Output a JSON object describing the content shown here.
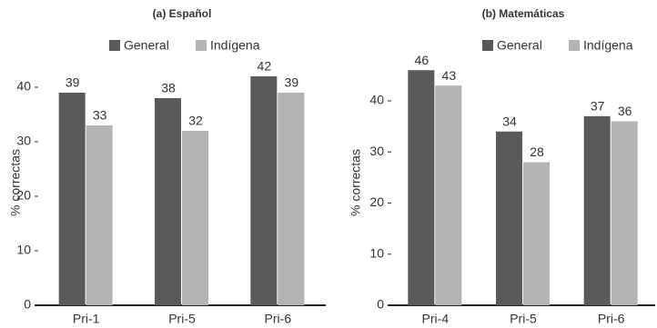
{
  "chart_data": [
    {
      "type": "bar",
      "title": "(a) Español",
      "y_label": "% correctas",
      "categories": [
        "Pri-1",
        "Pri-5",
        "Pri-6"
      ],
      "series": [
        {
          "name": "General",
          "color": "#5a5a5a",
          "values": [
            39,
            38,
            42
          ]
        },
        {
          "name": "Indígena",
          "color": "#b3b3b3",
          "values": [
            33,
            32,
            39
          ]
        }
      ],
      "ylim": [
        0,
        45
      ],
      "yticks": [
        0,
        10,
        20,
        30,
        40
      ]
    },
    {
      "type": "bar",
      "title": "(b) Matemáticas",
      "y_label": "% correctas",
      "categories": [
        "Pri-4",
        "Pri-5",
        "Pri-6"
      ],
      "series": [
        {
          "name": "General",
          "color": "#5a5a5a",
          "values": [
            46,
            34,
            37
          ]
        },
        {
          "name": "Indígena",
          "color": "#b3b3b3",
          "values": [
            43,
            28,
            36
          ]
        }
      ],
      "ylim": [
        0,
        48
      ],
      "yticks": [
        0,
        10,
        20,
        30,
        40
      ]
    }
  ]
}
